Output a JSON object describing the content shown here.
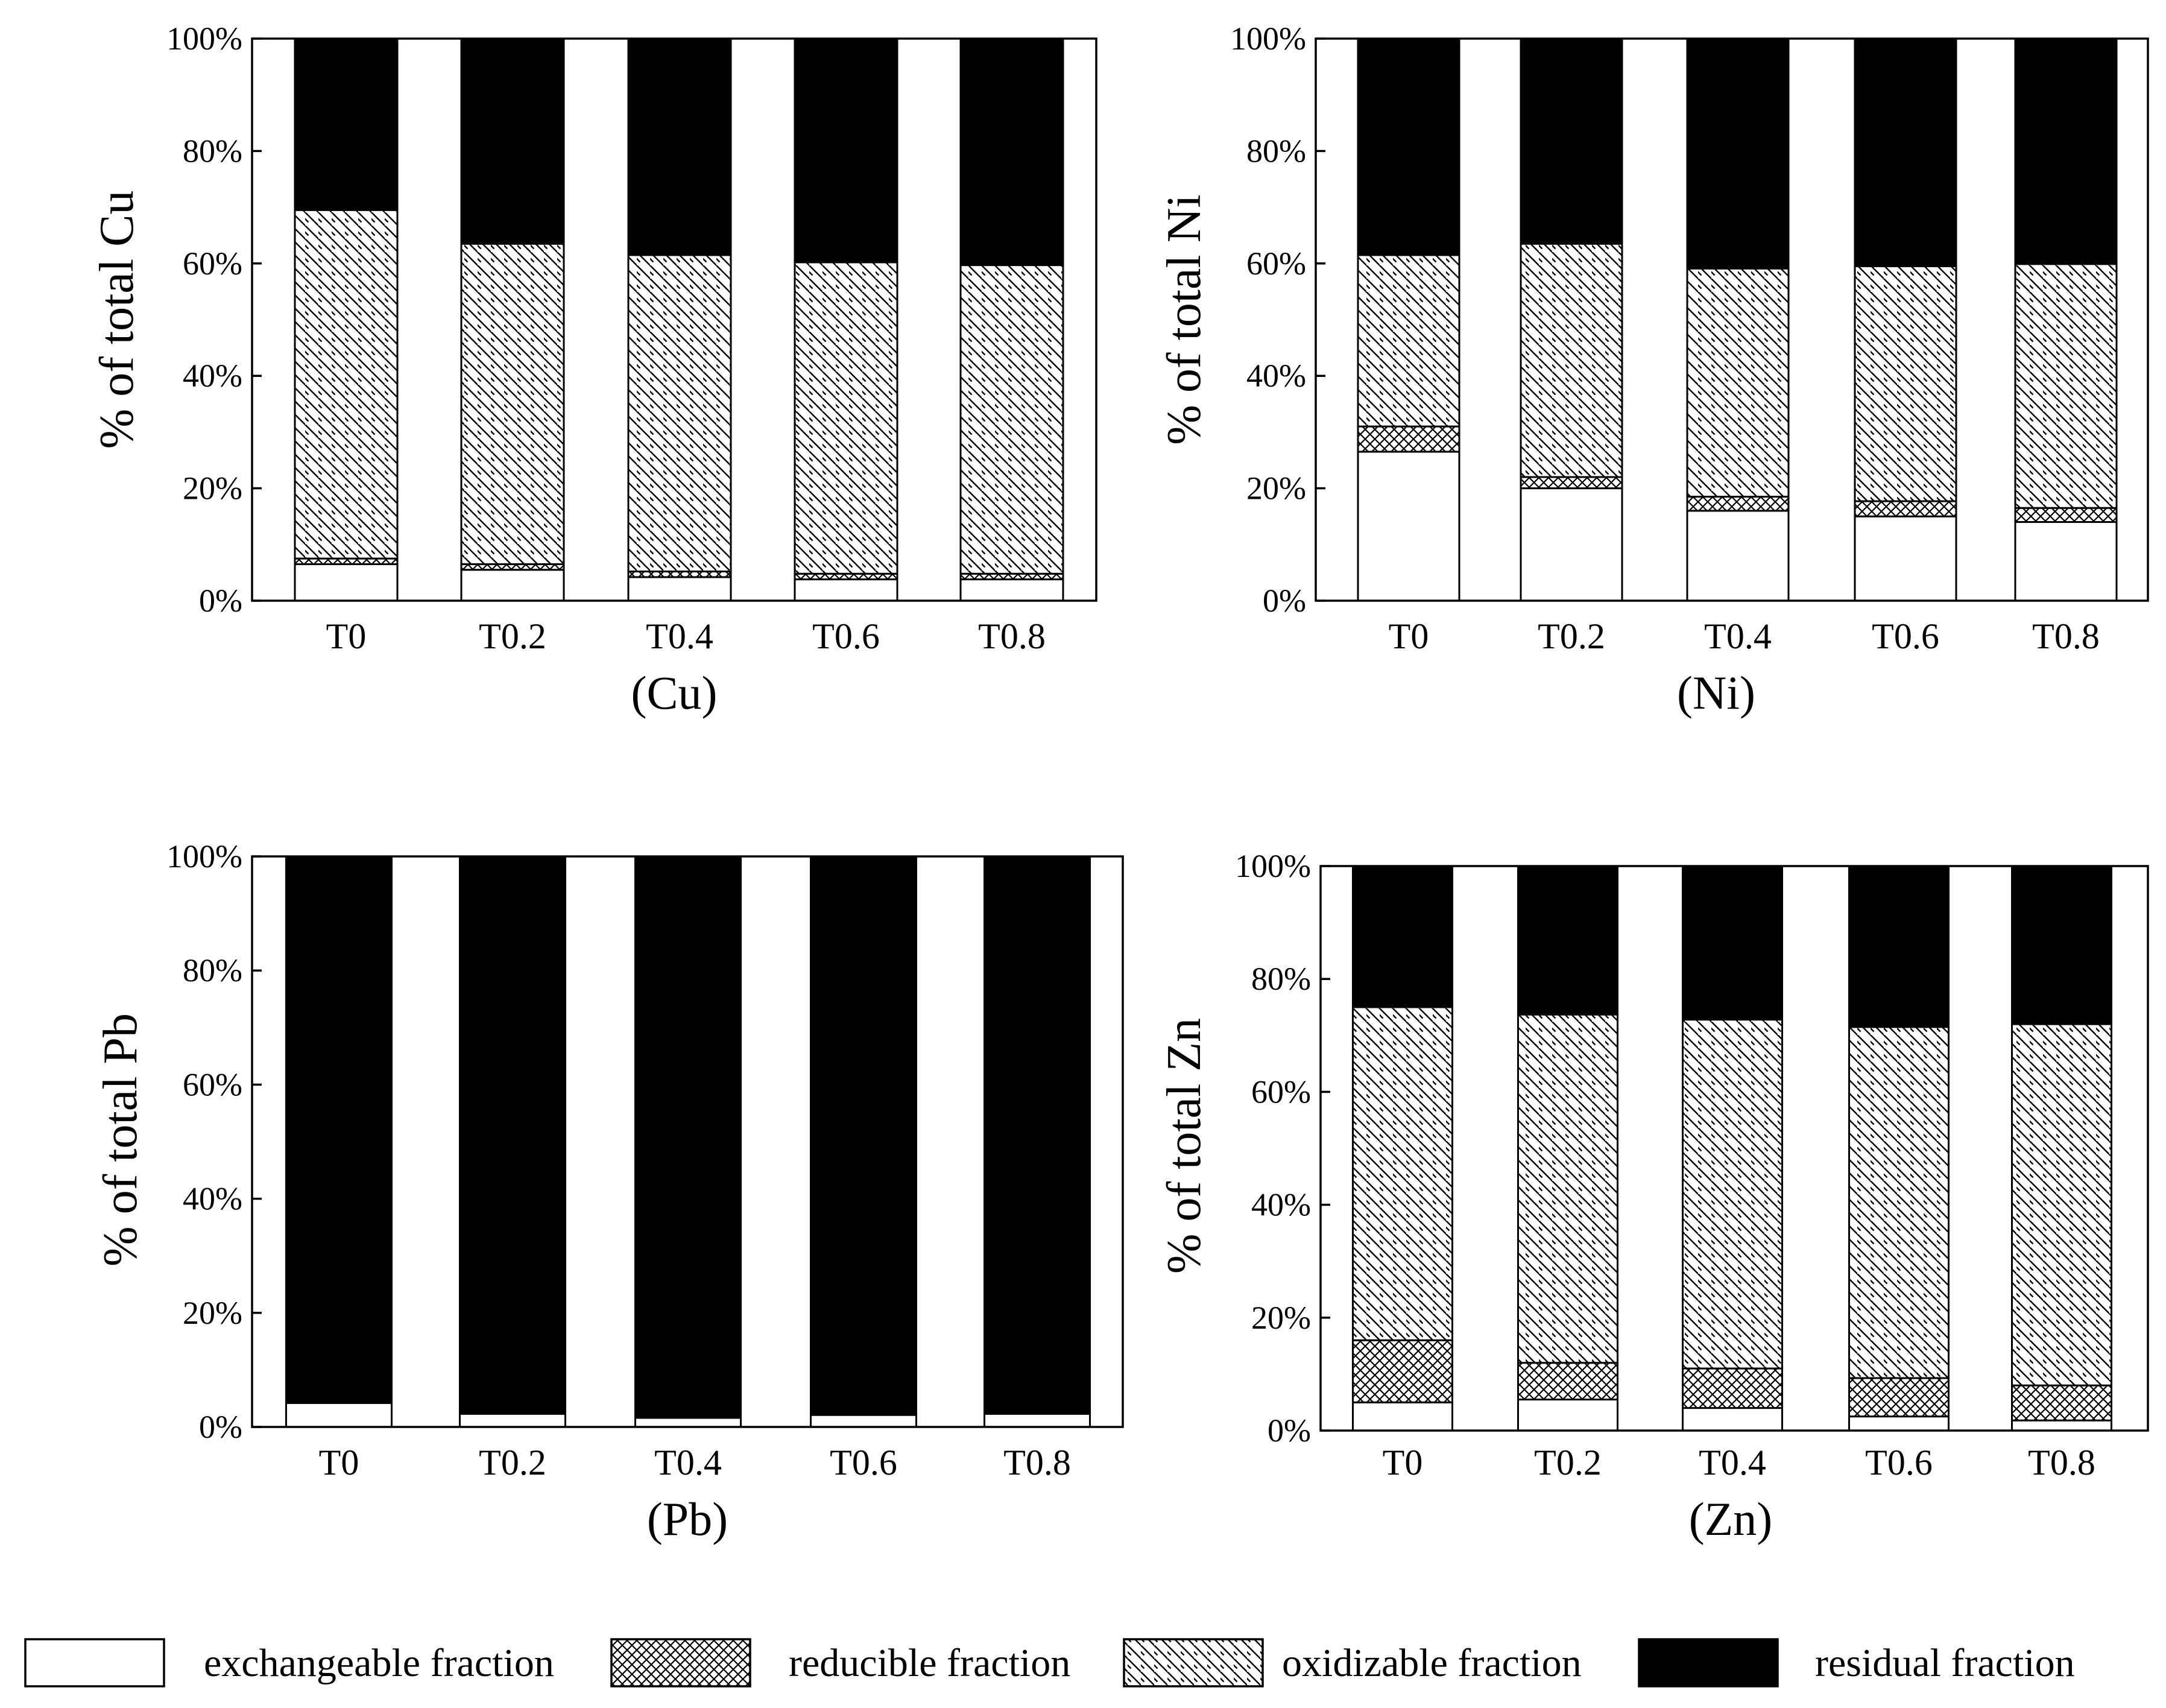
{
  "legend": [
    {
      "key": "exchangeable",
      "label": "exchangeable fraction"
    },
    {
      "key": "reducible",
      "label": "reducible fraction"
    },
    {
      "key": "oxidizable",
      "label": "oxidizable fraction"
    },
    {
      "key": "residual",
      "label": "residual fraction"
    }
  ],
  "chart_data": [
    {
      "type": "bar",
      "stacked": true,
      "title": "(Cu)",
      "ylabel": "% of total Cu",
      "xlabel": "",
      "categories": [
        "T0",
        "T0.2",
        "T0.4",
        "T0.6",
        "T0.8"
      ],
      "yticks": [
        "0%",
        "20%",
        "40%",
        "60%",
        "80%",
        "100%"
      ],
      "ylim": [
        0,
        100
      ],
      "series": [
        {
          "name": "exchangeable fraction",
          "key": "exchangeable",
          "values": [
            6.5,
            5.5,
            4.2,
            3.8,
            3.8
          ]
        },
        {
          "name": "reducible fraction",
          "key": "reducible",
          "values": [
            1.0,
            1.0,
            1.0,
            1.0,
            1.0
          ]
        },
        {
          "name": "oxidizable fraction",
          "key": "oxidizable",
          "values": [
            62.0,
            57.0,
            56.3,
            55.4,
            54.9
          ]
        },
        {
          "name": "residual fraction",
          "key": "residual",
          "values": [
            30.5,
            36.5,
            38.5,
            39.8,
            40.3
          ]
        }
      ]
    },
    {
      "type": "bar",
      "stacked": true,
      "title": "(Ni)",
      "ylabel": "% of total Ni",
      "xlabel": "",
      "categories": [
        "T0",
        "T0.2",
        "T0.4",
        "T0.6",
        "T0.8"
      ],
      "yticks": [
        "0%",
        "20%",
        "40%",
        "60%",
        "80%",
        "100%"
      ],
      "ylim": [
        0,
        100
      ],
      "series": [
        {
          "name": "exchangeable fraction",
          "key": "exchangeable",
          "values": [
            26.5,
            20.0,
            16.0,
            15.0,
            14.0
          ]
        },
        {
          "name": "reducible fraction",
          "key": "reducible",
          "values": [
            4.5,
            2.0,
            2.5,
            2.7,
            2.5
          ]
        },
        {
          "name": "oxidizable fraction",
          "key": "oxidizable",
          "values": [
            30.5,
            41.5,
            40.6,
            41.8,
            43.4
          ]
        },
        {
          "name": "residual fraction",
          "key": "residual",
          "values": [
            38.5,
            36.5,
            40.9,
            40.5,
            40.1
          ]
        }
      ]
    },
    {
      "type": "bar",
      "stacked": true,
      "title": "(Pb)",
      "ylabel": "% of total Pb",
      "xlabel": "",
      "categories": [
        "T0",
        "T0.2",
        "T0.4",
        "T0.6",
        "T0.8"
      ],
      "yticks": [
        "0%",
        "20%",
        "40%",
        "60%",
        "80%",
        "100%"
      ],
      "ylim": [
        0,
        100
      ],
      "series": [
        {
          "name": "exchangeable fraction",
          "key": "exchangeable",
          "values": [
            4.2,
            2.3,
            1.6,
            2.1,
            2.3
          ]
        },
        {
          "name": "reducible fraction",
          "key": "reducible",
          "values": [
            0,
            0,
            0,
            0,
            0
          ]
        },
        {
          "name": "oxidizable fraction",
          "key": "oxidizable",
          "values": [
            0,
            0,
            0,
            0,
            0
          ]
        },
        {
          "name": "residual fraction",
          "key": "residual",
          "values": [
            95.8,
            97.7,
            98.4,
            97.9,
            97.7
          ]
        }
      ]
    },
    {
      "type": "bar",
      "stacked": true,
      "title": "(Zn)",
      "ylabel": "% of total Zn",
      "xlabel": "",
      "categories": [
        "T0",
        "T0.2",
        "T0.4",
        "T0.6",
        "T0.8"
      ],
      "yticks": [
        "0%",
        "20%",
        "40%",
        "60%",
        "80%",
        "100%"
      ],
      "ylim": [
        0,
        100
      ],
      "series": [
        {
          "name": "exchangeable fraction",
          "key": "exchangeable",
          "values": [
            5.0,
            5.5,
            4.0,
            2.5,
            1.8
          ]
        },
        {
          "name": "reducible fraction",
          "key": "reducible",
          "values": [
            11.0,
            6.5,
            7.0,
            6.8,
            6.2
          ]
        },
        {
          "name": "oxidizable fraction",
          "key": "oxidizable",
          "values": [
            59.0,
            61.7,
            61.8,
            62.2,
            64.0
          ]
        },
        {
          "name": "residual fraction",
          "key": "residual",
          "values": [
            25.0,
            26.3,
            27.2,
            28.5,
            28.0
          ]
        }
      ]
    }
  ]
}
